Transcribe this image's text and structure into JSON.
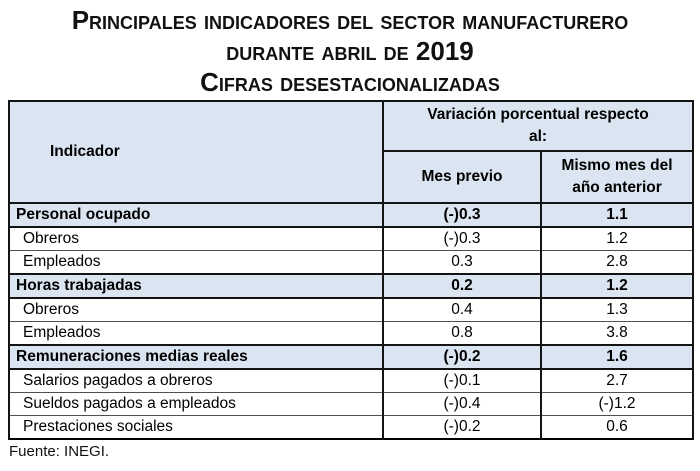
{
  "title": {
    "line1": "Principales indicadores del sector manufacturero",
    "line2": "durante abril de 2019",
    "line3": "Cifras desestacionalizadas"
  },
  "table": {
    "header": {
      "indicator": "Indicador",
      "variation": "Variación porcentual respecto al:",
      "prev": "Mes previo",
      "year": "Mismo mes del año anterior"
    },
    "rows": [
      {
        "label": "Personal ocupado",
        "prev": "(-)0.3",
        "year": "1.1"
      },
      {
        "label": "Obreros",
        "prev": "(-)0.3",
        "year": "1.2"
      },
      {
        "label": "Empleados",
        "prev": "0.3",
        "year": "2.8"
      },
      {
        "label": "Horas trabajadas",
        "prev": "0.2",
        "year": "1.2"
      },
      {
        "label": "Obreros",
        "prev": "0.4",
        "year": "1.3"
      },
      {
        "label": "Empleados",
        "prev": "0.8",
        "year": "3.8"
      },
      {
        "label": "Remuneraciones medias reales",
        "prev": "(-)0.2",
        "year": "1.6"
      },
      {
        "label": "Salarios pagados a obreros",
        "prev": "(-)0.1",
        "year": "2.7"
      },
      {
        "label": "Sueldos pagados a empleados",
        "prev": "(-)0.4",
        "year": "(-)1.2"
      },
      {
        "label": "Prestaciones sociales",
        "prev": "(-)0.2",
        "year": "0.6"
      }
    ]
  },
  "source": "Fuente: INEGI.",
  "colors": {
    "header_bg": "#dbe5f1",
    "border_dark": "#141414",
    "border_light": "#4f4f4f",
    "text": "#000000"
  },
  "chart_data": {
    "type": "table",
    "title": "Principales indicadores del sector manufacturero durante abril de 2019 — Cifras desestacionalizadas",
    "columns": [
      "Indicador",
      "Mes previo",
      "Mismo mes del año anterior"
    ],
    "rows": [
      {
        "indicador": "Personal ocupado",
        "mes_previo": -0.3,
        "mismo_mes_anio_anterior": 1.1,
        "is_section": true
      },
      {
        "indicador": "Obreros",
        "mes_previo": -0.3,
        "mismo_mes_anio_anterior": 1.2,
        "is_section": false
      },
      {
        "indicador": "Empleados",
        "mes_previo": 0.3,
        "mismo_mes_anio_anterior": 2.8,
        "is_section": false
      },
      {
        "indicador": "Horas trabajadas",
        "mes_previo": 0.2,
        "mismo_mes_anio_anterior": 1.2,
        "is_section": true
      },
      {
        "indicador": "Obreros",
        "mes_previo": 0.4,
        "mismo_mes_anio_anterior": 1.3,
        "is_section": false
      },
      {
        "indicador": "Empleados",
        "mes_previo": 0.8,
        "mismo_mes_anio_anterior": 3.8,
        "is_section": false
      },
      {
        "indicador": "Remuneraciones medias reales",
        "mes_previo": -0.2,
        "mismo_mes_anio_anterior": 1.6,
        "is_section": true
      },
      {
        "indicador": "Salarios pagados a obreros",
        "mes_previo": -0.1,
        "mismo_mes_anio_anterior": 2.7,
        "is_section": false
      },
      {
        "indicador": "Sueldos pagados a empleados",
        "mes_previo": -0.4,
        "mismo_mes_anio_anterior": -1.2,
        "is_section": false
      },
      {
        "indicador": "Prestaciones sociales",
        "mes_previo": -0.2,
        "mismo_mes_anio_anterior": 0.6,
        "is_section": false
      }
    ],
    "source": "Fuente: INEGI.",
    "units": "Variación porcentual",
    "negative_notation": "(-)"
  }
}
